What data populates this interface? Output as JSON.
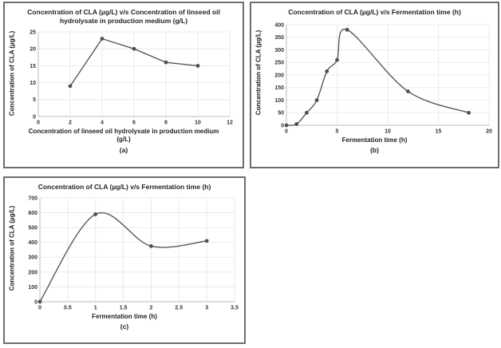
{
  "colors": {
    "line": "#595959",
    "marker": "#4f4f4f",
    "grid": "#e6e6e6",
    "axis": "#bdbdbd",
    "tick_text": "#333333",
    "text": "#1f1f1f",
    "panel_border": "#6e6e6e"
  },
  "chart_data": [
    {
      "type": "line",
      "caption": "(a)",
      "title": "Concentration of CLA (µg/L) v/s Concentration of linseed oil hydrolysate in production medium (g/L)",
      "xlabel": "Concentration of linseed oil hydrolysate in production medium (g/L)",
      "ylabel": "Concentration of CLA (µg/L)",
      "x": [
        2,
        4,
        6,
        8,
        10
      ],
      "y": [
        9,
        23,
        20,
        16,
        15
      ],
      "xlim": [
        0,
        12
      ],
      "ylim": [
        0,
        25
      ],
      "xticks": [
        0,
        2,
        4,
        6,
        8,
        10,
        12
      ],
      "yticks": [
        0,
        5,
        10,
        15,
        20,
        25
      ],
      "smooth": false,
      "grid": true,
      "legend": "none",
      "marker": "circle"
    },
    {
      "type": "line",
      "caption": "(b)",
      "title": "Concentration of CLA (µg/L) v/s Fermentation time (h)",
      "xlabel": "Fermentation time (h)",
      "ylabel": "Concentration of CLA (µg/L)",
      "x": [
        0,
        1,
        2,
        3,
        4,
        5,
        6,
        12,
        18
      ],
      "y": [
        0,
        5,
        50,
        100,
        215,
        260,
        380,
        135,
        50
      ],
      "xlim": [
        0,
        20
      ],
      "ylim": [
        0,
        400
      ],
      "xticks": [
        0,
        5,
        10,
        15,
        20
      ],
      "yticks": [
        0,
        50,
        100,
        150,
        200,
        250,
        300,
        350,
        400
      ],
      "smooth": true,
      "grid": true,
      "legend": "none",
      "marker": "circle"
    },
    {
      "type": "line",
      "caption": "(c)",
      "title": "Concentration of CLA (µg/L) v/s Fermentation time (h)",
      "xlabel": "Fermentation time (h)",
      "ylabel": "Concentration of CLA (µg/L)",
      "x": [
        0,
        1,
        2,
        3
      ],
      "y": [
        0,
        590,
        375,
        410
      ],
      "xlim": [
        0,
        3.5
      ],
      "ylim": [
        0,
        700
      ],
      "xticks": [
        0,
        0.5,
        1,
        1.5,
        2,
        2.5,
        3,
        3.5
      ],
      "yticks": [
        0,
        100,
        200,
        300,
        400,
        500,
        600,
        700
      ],
      "smooth": true,
      "grid": true,
      "legend": "none",
      "marker": "circle"
    }
  ]
}
